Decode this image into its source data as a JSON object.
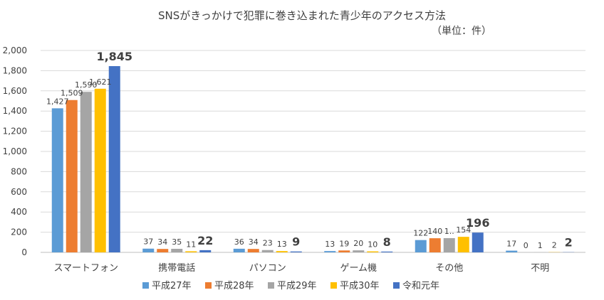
{
  "chart_data": {
    "type": "bar",
    "title": "SNSがきっかけで犯罪に巻き込まれた青少年のアクセス方法",
    "unit_note": "（単位：件）",
    "categories": [
      "スマートフォン",
      "携帯電話",
      "パソコン",
      "ゲーム機",
      "その他",
      "不明"
    ],
    "series": [
      {
        "name": "平成27年",
        "color": "#5b9bd5",
        "values": [
          1427,
          37,
          36,
          13,
          122,
          17
        ]
      },
      {
        "name": "平成28年",
        "color": "#ed7d31",
        "values": [
          1509,
          34,
          34,
          19,
          140,
          0
        ]
      },
      {
        "name": "平成29年",
        "color": "#a5a5a5",
        "values": [
          1590,
          35,
          23,
          20,
          141,
          1
        ]
      },
      {
        "name": "平成30年",
        "color": "#ffc000",
        "values": [
          1621,
          11,
          13,
          10,
          154,
          2
        ]
      },
      {
        "name": "令和元年",
        "color": "#4472c4",
        "values": [
          1845,
          22,
          9,
          8,
          196,
          2
        ]
      }
    ],
    "data_labels": [
      [
        "1,427",
        "37",
        "36",
        "13",
        "122",
        "17"
      ],
      [
        "1,509",
        "34",
        "34",
        "19",
        "140",
        "0"
      ],
      [
        "1,590",
        "35",
        "23",
        "20",
        "1..",
        "1"
      ],
      [
        "1,621",
        "11",
        "13",
        "10",
        "154",
        "2"
      ],
      [
        "1,845",
        "22",
        "9",
        "8",
        "196",
        "2"
      ]
    ],
    "ylim": [
      0,
      2000
    ],
    "yticks": [
      "0",
      "200",
      "400",
      "600",
      "800",
      "1,000",
      "1,200",
      "1,400",
      "1,600",
      "1,800",
      "2,000"
    ],
    "ytick_values": [
      0,
      200,
      400,
      600,
      800,
      1000,
      1200,
      1400,
      1600,
      1800,
      2000
    ],
    "grid": true,
    "legend_position": "bottom",
    "xlabel": "",
    "ylabel": ""
  }
}
